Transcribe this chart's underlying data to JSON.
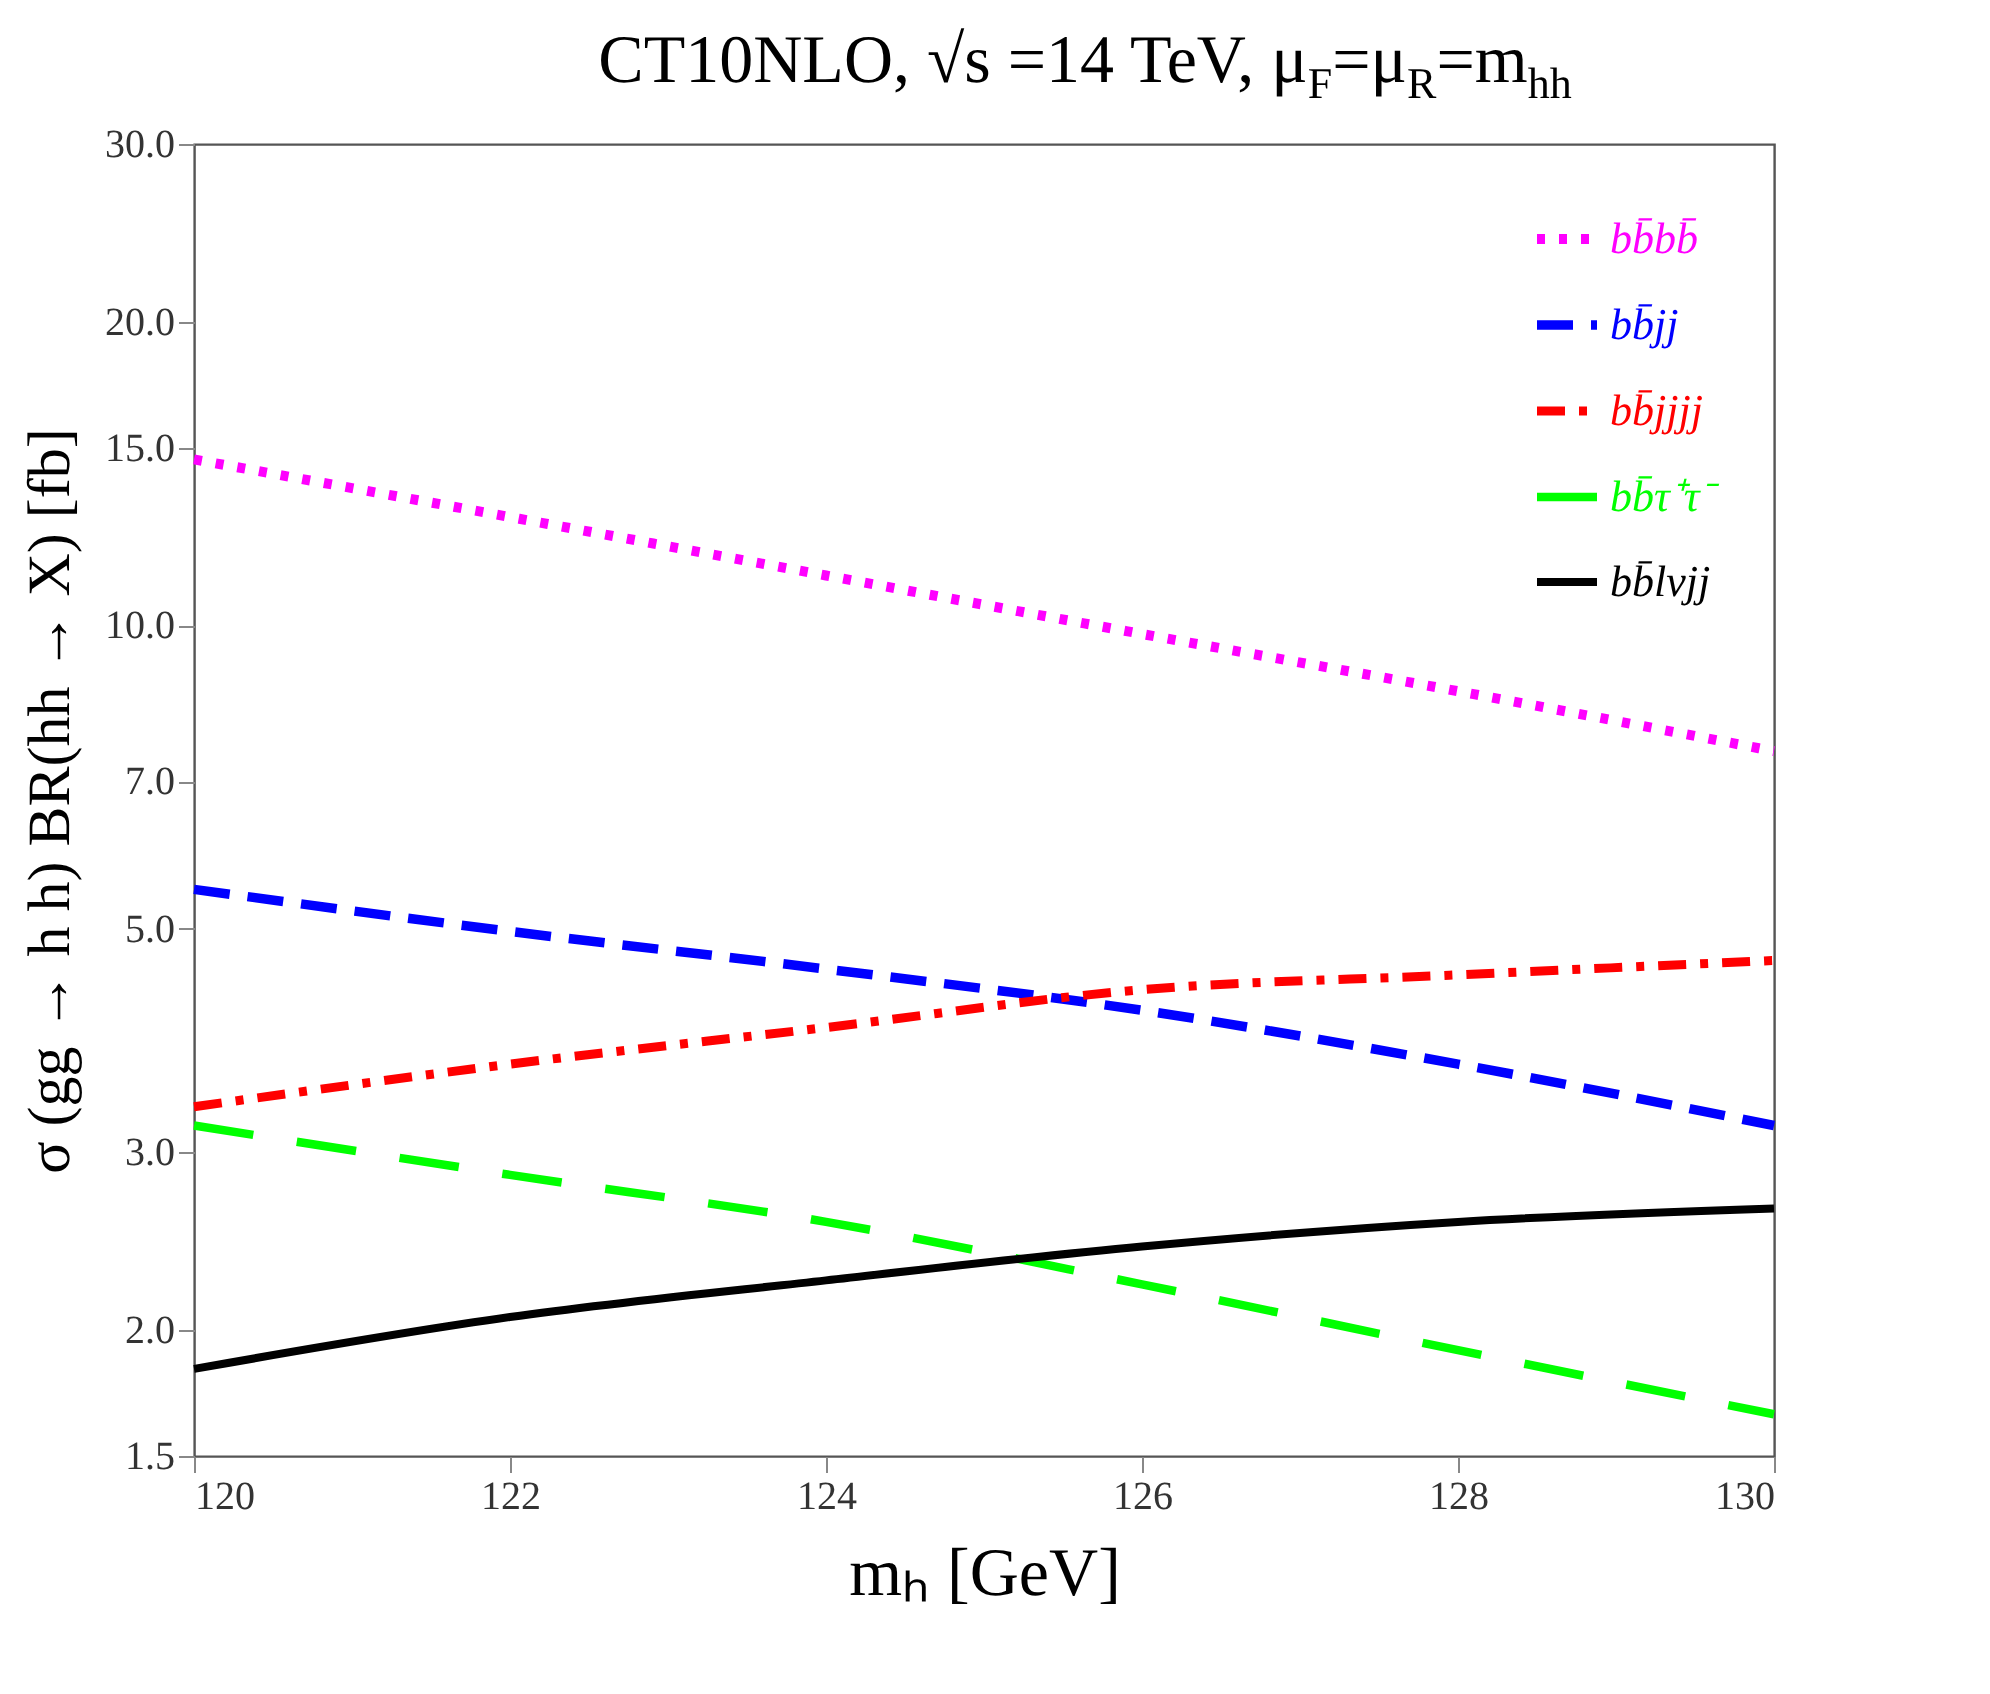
{
  "chart_data": {
    "type": "line",
    "title": "CT10NLO, √s =14 TeV, μ$_{F}$=μ$_{R}$=m$_{hh}$",
    "xlabel": "mₕ [GeV]",
    "ylabel": "σ (gg → h h) BR(hh → X) [fb]",
    "x": [
      120,
      122,
      124,
      126,
      128,
      130
    ],
    "series": [
      {
        "name": "bb̄bb̄",
        "color": "#ff00ff",
        "line_style": "dotted",
        "values": [
          14.6,
          12.8,
          11.2,
          9.8,
          8.6,
          7.5
        ]
      },
      {
        "name": "bb̄jj",
        "color": "#0000ff",
        "line_style": "dashed",
        "values": [
          5.47,
          4.97,
          4.56,
          4.15,
          3.67,
          3.19
        ]
      },
      {
        "name": "bb̄jjjj",
        "color": "#ff0000",
        "line_style": "dashdot",
        "values": [
          3.33,
          3.67,
          3.99,
          4.35,
          4.5,
          4.65
        ]
      },
      {
        "name": "bb̄τ⁺τ⁻",
        "color": "#00ff00",
        "line_style": "longdash",
        "values": [
          3.19,
          2.85,
          2.56,
          2.22,
          1.91,
          1.65
        ]
      },
      {
        "name": "bb̄lνjj",
        "color": "#000000",
        "line_style": "solid",
        "values": [
          1.83,
          2.06,
          2.24,
          2.42,
          2.56,
          2.64
        ]
      }
    ],
    "log": "y",
    "xlim": [
      120,
      130
    ],
    "xticks": [
      120,
      122,
      124,
      126,
      128,
      130
    ],
    "ylim": [
      1.5,
      30
    ],
    "yticks": [
      {
        "value": 1.5,
        "label": "1.5"
      },
      {
        "value": 2,
        "label": "2.0"
      },
      {
        "value": 3,
        "label": "3.0"
      },
      {
        "value": 5,
        "label": "5.0"
      },
      {
        "value": 7,
        "label": "7.0"
      },
      {
        "value": 10,
        "label": "10.0"
      },
      {
        "value": 15,
        "label": "15.0"
      },
      {
        "value": 20,
        "label": "20.0"
      },
      {
        "value": 30,
        "label": "30.0"
      }
    ],
    "grid": false,
    "legend": "top right",
    "marker": "none"
  }
}
